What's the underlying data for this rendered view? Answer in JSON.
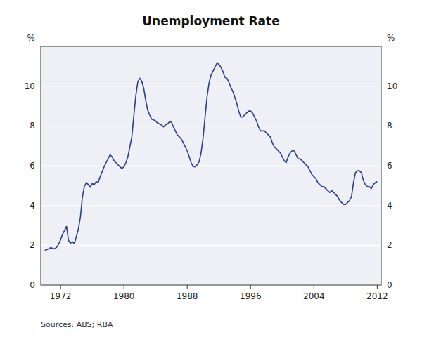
{
  "chart_data": {
    "type": "line",
    "title": "Unemployment Rate",
    "ylabel": "%",
    "y2label": "%",
    "source": "Sources: ABS; RBA",
    "color": "#2b3f8c",
    "grid": true,
    "xlim": [
      1969.5,
      2012.5
    ],
    "xticks": [
      1972,
      1980,
      1988,
      1996,
      2004,
      2012
    ],
    "ylim": [
      0,
      12
    ],
    "yticks": [
      0,
      2,
      4,
      6,
      8,
      10
    ],
    "y2lim": [
      0,
      12
    ],
    "y2ticks": [
      0,
      2,
      4,
      6,
      8,
      10
    ],
    "x": [
      1970.0,
      1970.25,
      1970.5,
      1970.75,
      1971.0,
      1971.25,
      1971.5,
      1971.75,
      1972.0,
      1972.25,
      1972.5,
      1972.75,
      1973.0,
      1973.25,
      1973.5,
      1973.75,
      1974.0,
      1974.25,
      1974.5,
      1974.75,
      1975.0,
      1975.25,
      1975.5,
      1975.75,
      1976.0,
      1976.25,
      1976.5,
      1976.75,
      1977.0,
      1977.25,
      1977.5,
      1977.75,
      1978.0,
      1978.25,
      1978.5,
      1978.75,
      1979.0,
      1979.25,
      1979.5,
      1979.75,
      1980.0,
      1980.25,
      1980.5,
      1980.75,
      1981.0,
      1981.25,
      1981.5,
      1981.75,
      1982.0,
      1982.25,
      1982.5,
      1982.75,
      1983.0,
      1983.25,
      1983.5,
      1983.75,
      1984.0,
      1984.25,
      1984.5,
      1984.75,
      1985.0,
      1985.25,
      1985.5,
      1985.75,
      1986.0,
      1986.25,
      1986.5,
      1986.75,
      1987.0,
      1987.25,
      1987.5,
      1987.75,
      1988.0,
      1988.25,
      1988.5,
      1988.75,
      1989.0,
      1989.25,
      1989.5,
      1989.75,
      1990.0,
      1990.25,
      1990.5,
      1990.75,
      1991.0,
      1991.25,
      1991.5,
      1991.75,
      1992.0,
      1992.25,
      1992.5,
      1992.75,
      1993.0,
      1993.25,
      1993.5,
      1993.75,
      1994.0,
      1994.25,
      1994.5,
      1994.75,
      1995.0,
      1995.25,
      1995.5,
      1995.75,
      1996.0,
      1996.25,
      1996.5,
      1996.75,
      1997.0,
      1997.25,
      1997.5,
      1997.75,
      1998.0,
      1998.25,
      1998.5,
      1998.75,
      1999.0,
      1999.25,
      1999.5,
      1999.75,
      2000.0,
      2000.25,
      2000.5,
      2000.75,
      2001.0,
      2001.25,
      2001.5,
      2001.75,
      2002.0,
      2002.25,
      2002.5,
      2002.75,
      2003.0,
      2003.25,
      2003.5,
      2003.75,
      2004.0,
      2004.25,
      2004.5,
      2004.75,
      2005.0,
      2005.25,
      2005.5,
      2005.75,
      2006.0,
      2006.25,
      2006.5,
      2006.75,
      2007.0,
      2007.25,
      2007.5,
      2007.75,
      2008.0,
      2008.25,
      2008.5,
      2008.75,
      2009.0,
      2009.25,
      2009.5,
      2009.75,
      2010.0,
      2010.25,
      2010.5,
      2010.75,
      2011.0,
      2011.25,
      2011.5,
      2011.75,
      2012.0
    ],
    "values": [
      1.75,
      1.78,
      1.82,
      1.88,
      1.85,
      1.82,
      1.9,
      2.05,
      2.28,
      2.55,
      2.75,
      2.95,
      2.25,
      2.1,
      2.18,
      2.08,
      2.45,
      2.82,
      3.4,
      4.4,
      4.95,
      5.15,
      5.05,
      4.92,
      5.1,
      5.05,
      5.2,
      5.15,
      5.45,
      5.7,
      5.95,
      6.15,
      6.35,
      6.55,
      6.45,
      6.25,
      6.15,
      6.05,
      5.95,
      5.85,
      5.95,
      6.15,
      6.45,
      6.95,
      7.45,
      8.5,
      9.5,
      10.2,
      10.4,
      10.25,
      9.9,
      9.3,
      8.8,
      8.55,
      8.35,
      8.3,
      8.25,
      8.15,
      8.1,
      8.05,
      7.95,
      8.05,
      8.1,
      8.2,
      8.2,
      7.95,
      7.75,
      7.55,
      7.45,
      7.35,
      7.15,
      6.95,
      6.75,
      6.45,
      6.15,
      5.95,
      5.95,
      6.05,
      6.2,
      6.65,
      7.4,
      8.45,
      9.45,
      10.15,
      10.55,
      10.75,
      10.95,
      11.15,
      11.1,
      10.95,
      10.75,
      10.45,
      10.4,
      10.2,
      9.95,
      9.75,
      9.45,
      9.15,
      8.75,
      8.45,
      8.45,
      8.55,
      8.65,
      8.75,
      8.75,
      8.65,
      8.45,
      8.25,
      7.95,
      7.75,
      7.75,
      7.75,
      7.65,
      7.55,
      7.45,
      7.15,
      6.95,
      6.85,
      6.75,
      6.65,
      6.45,
      6.25,
      6.15,
      6.45,
      6.65,
      6.75,
      6.75,
      6.55,
      6.35,
      6.35,
      6.25,
      6.15,
      6.05,
      5.95,
      5.75,
      5.55,
      5.45,
      5.35,
      5.15,
      5.05,
      4.95,
      4.95,
      4.85,
      4.75,
      4.65,
      4.75,
      4.65,
      4.55,
      4.45,
      4.25,
      4.15,
      4.05,
      4.05,
      4.15,
      4.25,
      4.45,
      5.15,
      5.65,
      5.75,
      5.75,
      5.65,
      5.25,
      5.05,
      4.95,
      4.95,
      4.85,
      5.05,
      5.15,
      5.2
    ]
  }
}
